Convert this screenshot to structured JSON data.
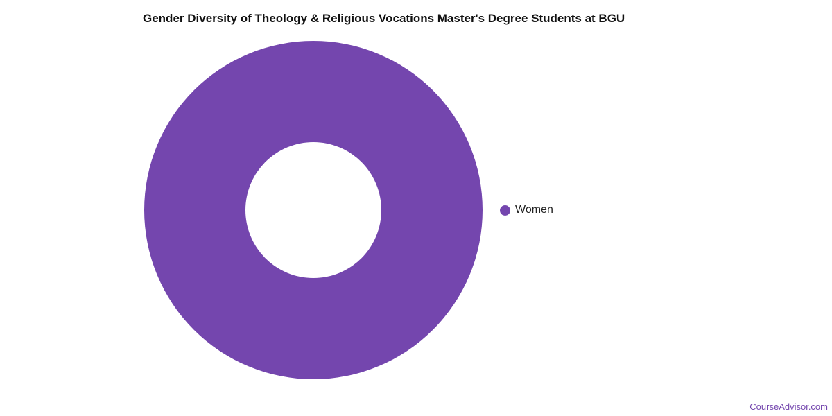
{
  "chart_data": {
    "type": "pie",
    "subtype": "donut",
    "title": "Gender Diversity of Theology & Religious Vocations Master's Degree Students at BGU",
    "categories": [
      "Women"
    ],
    "values": [
      100
    ],
    "unit": "%",
    "colors": [
      "#7446ae"
    ],
    "legend_position": "right"
  },
  "watermark": "CourseAdvisor.com"
}
